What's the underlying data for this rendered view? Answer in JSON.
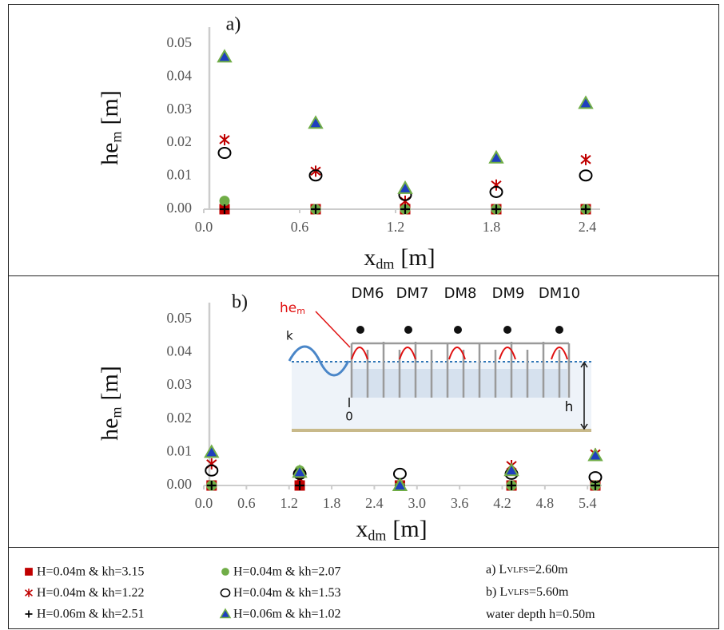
{
  "chart_data": [
    {
      "type": "scatter",
      "title": "a)",
      "y_label": {
        "main": "he",
        "sub": "m",
        "unit": "[m]"
      },
      "x_label": {
        "main": "x",
        "sub": "dm",
        "unit": "[m]"
      },
      "x": [
        0.13,
        0.7,
        1.26,
        1.83,
        2.39
      ],
      "series": [
        {
          "name": "H=0.04m & kh=3.15",
          "marker": "square",
          "color": "#c00000",
          "values": [
            0,
            0,
            0,
            0,
            0
          ]
        },
        {
          "name": "H=0.04m & kh=2.07",
          "marker": "circle",
          "color": "#70ad47",
          "values": [
            0.0025,
            0,
            0,
            0,
            0
          ]
        },
        {
          "name": "H=0.04m & kh=1.22",
          "marker": "asterisk",
          "color": "#c00000",
          "values": [
            0.021,
            0.0115,
            0.0024,
            0.0073,
            0.015
          ]
        },
        {
          "name": "H=0.04m & kh=1.53",
          "marker": "open-circle",
          "color": "#000000",
          "values": [
            0.017,
            0.0102,
            0.0043,
            0.0052,
            0.0102
          ]
        },
        {
          "name": "H=0.06m & kh=2.51",
          "marker": "plus",
          "color": "#000000",
          "values": [
            0,
            0,
            0,
            0,
            0
          ]
        },
        {
          "name": "H=0.06m & kh=1.02",
          "marker": "triangle",
          "color": "#1f3fbf",
          "edgecolor": "#70ad47",
          "values": [
            0.046,
            0.026,
            0.0063,
            0.0155,
            0.032
          ]
        }
      ],
      "xlim": [
        0,
        2.48
      ],
      "ylim": [
        0,
        0.055
      ],
      "xticks": [
        {
          "value": 0,
          "label": "0.0"
        },
        0.6,
        1.2,
        1.8,
        2.4
      ],
      "yticks": [
        {
          "value": 0,
          "label": "0.00"
        },
        0.01,
        0.02,
        0.03,
        0.04,
        0.05
      ],
      "grid": false
    },
    {
      "type": "scatter",
      "title": "b)",
      "y_label": {
        "main": "he",
        "sub": "m",
        "unit": "[m]"
      },
      "x_label": {
        "main": "x",
        "sub": "dm",
        "unit": "[m]"
      },
      "x": [
        0.11,
        1.35,
        2.76,
        4.33,
        5.51
      ],
      "series": [
        {
          "marker": "square",
          "color": "#c00000",
          "values": [
            0,
            0,
            0,
            0,
            0
          ]
        },
        {
          "marker": "circle",
          "color": "#70ad47",
          "values": [
            0,
            0.0045,
            0,
            0,
            0
          ]
        },
        {
          "marker": "asterisk",
          "color": "#c00000",
          "values": [
            0.0065,
            0.002,
            0,
            0.006,
            0.0095
          ]
        },
        {
          "marker": "open-circle",
          "color": "#000000",
          "values": [
            0.0045,
            0.0035,
            0.0035,
            0.0035,
            0.0025
          ]
        },
        {
          "marker": "plus",
          "color": "#000000",
          "values": [
            0,
            0,
            0,
            0,
            0
          ]
        },
        {
          "marker": "triangle",
          "color": "#1f3fbf",
          "edgecolor": "#70ad47",
          "values": [
            0.01,
            0.004,
            0,
            0.0045,
            0.009
          ]
        }
      ],
      "xlim": [
        0,
        5.6
      ],
      "ylim": [
        0,
        0.055
      ],
      "xticks": [
        {
          "value": 0,
          "label": "0.0"
        },
        0.6,
        1.2,
        1.8,
        2.4,
        {
          "value": 3,
          "label": "3.0"
        },
        3.6,
        4.2,
        4.8,
        5.4
      ],
      "yticks": [
        {
          "value": 0,
          "label": "0.00"
        },
        0.01,
        0.02,
        0.03,
        0.04,
        0.05
      ],
      "grid": false,
      "inset": {
        "labels": [
          "DM6",
          "DM7",
          "DM8",
          "DM9",
          "DM10"
        ],
        "wave_height": {
          "main": "he",
          "sub": "m"
        },
        "wavenumber": "k",
        "origin": "0",
        "depth": "h"
      }
    }
  ],
  "notes": [
    {
      "pre": "a) L",
      "sub": "VLFS",
      "post": "=2.60m"
    },
    {
      "pre": "b) L",
      "sub": "VLFS",
      "post": "=5.60m"
    },
    {
      "text": "water depth h=0.50m"
    }
  ]
}
